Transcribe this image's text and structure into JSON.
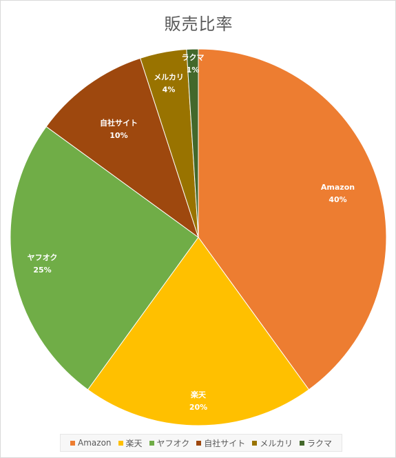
{
  "chart_data": {
    "type": "pie",
    "title": "販売比率",
    "categories": [
      "Amazon",
      "楽天",
      "ヤフオク",
      "自社サイト",
      "メルカリ",
      "ラクマ"
    ],
    "values": [
      40,
      20,
      25,
      10,
      4,
      1
    ],
    "labels": [
      "40%",
      "20%",
      "25%",
      "10%",
      "4%",
      "1%"
    ],
    "colors": [
      "#ED7D31",
      "#FFC000",
      "#70AD47",
      "#9E480E",
      "#997300",
      "#43682B"
    ],
    "legend_position": "bottom"
  }
}
